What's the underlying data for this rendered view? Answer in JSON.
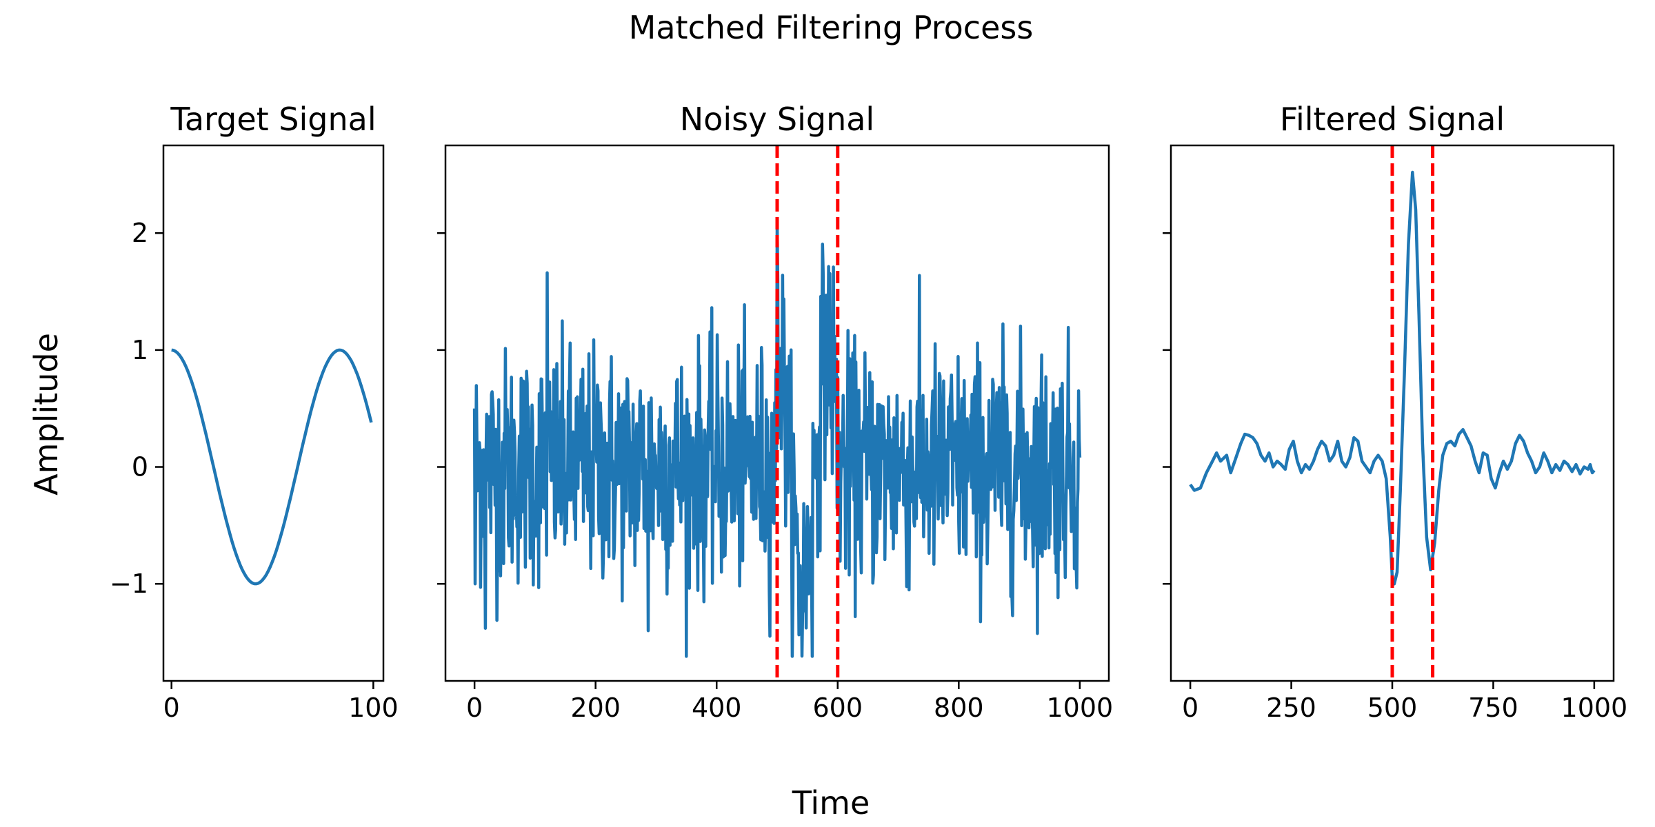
{
  "figure": {
    "suptitle": "Matched Filtering Process",
    "supxlabel": "Time",
    "supylabel": "Amplitude"
  },
  "colors": {
    "line": "#1f77b4",
    "marker_line": "#ff0000",
    "axes": "#000000",
    "background": "#ffffff"
  },
  "chart_data": [
    {
      "type": "line",
      "title": "Target Signal",
      "xlim": [
        -4,
        105
      ],
      "ylim": [
        -1.83,
        2.75
      ],
      "xticks": [
        0,
        100
      ],
      "xtick_labels": [
        "0",
        "100"
      ],
      "yticks": [
        -1,
        0,
        1,
        2
      ],
      "ytick_labels": [
        "−1",
        "0",
        "1",
        "2"
      ],
      "show_ytick_labels": true,
      "grid": false,
      "series": [
        {
          "description": "one period-ish cosine, n=100",
          "x_range": [
            0,
            99
          ],
          "cycles": 1.2,
          "amplitude": 1.0
        }
      ],
      "vlines": []
    },
    {
      "type": "line",
      "title": "Noisy Signal",
      "xlim": [
        -48,
        1048
      ],
      "ylim": [
        -1.83,
        2.75
      ],
      "xticks": [
        0,
        200,
        400,
        600,
        800,
        1000
      ],
      "xtick_labels": [
        "0",
        "200",
        "400",
        "600",
        "800",
        "1000"
      ],
      "yticks": [
        -1,
        0,
        1,
        2
      ],
      "ytick_labels": [
        "−1",
        "0",
        "1",
        "2"
      ],
      "show_ytick_labels": false,
      "grid": false,
      "series": [
        {
          "x_range": [
            0,
            1000
          ],
          "noise_amplitude_approx": 0.5,
          "signal_window": [
            500,
            600
          ],
          "signal_peak": 2.1,
          "signal_min": -1.6
        }
      ],
      "vlines": [
        500,
        600
      ]
    },
    {
      "type": "line",
      "title": "Filtered Signal",
      "xlim": [
        -48,
        1048
      ],
      "ylim": [
        -1.83,
        2.75
      ],
      "xticks": [
        0,
        250,
        500,
        750,
        1000
      ],
      "xtick_labels": [
        "0",
        "250",
        "500",
        "750",
        "1000"
      ],
      "yticks": [
        -1,
        0,
        1,
        2
      ],
      "ytick_labels": [
        "−1",
        "0",
        "1",
        "2"
      ],
      "show_ytick_labels": false,
      "grid": false,
      "series": [
        {
          "x_range": [
            0,
            1000
          ],
          "points": [
            [
              0,
              -0.15
            ],
            [
              10,
              -0.2
            ],
            [
              25,
              -0.18
            ],
            [
              40,
              -0.05
            ],
            [
              55,
              0.05
            ],
            [
              65,
              0.12
            ],
            [
              75,
              0.05
            ],
            [
              90,
              0.1
            ],
            [
              100,
              -0.05
            ],
            [
              110,
              0.05
            ],
            [
              125,
              0.2
            ],
            [
              135,
              0.28
            ],
            [
              145,
              0.27
            ],
            [
              155,
              0.25
            ],
            [
              165,
              0.2
            ],
            [
              175,
              0.1
            ],
            [
              185,
              0.05
            ],
            [
              195,
              0.12
            ],
            [
              205,
              0.0
            ],
            [
              215,
              0.05
            ],
            [
              225,
              0.02
            ],
            [
              235,
              -0.02
            ],
            [
              245,
              0.15
            ],
            [
              255,
              0.22
            ],
            [
              265,
              0.05
            ],
            [
              275,
              -0.05
            ],
            [
              285,
              0.02
            ],
            [
              295,
              -0.02
            ],
            [
              305,
              0.05
            ],
            [
              315,
              0.15
            ],
            [
              325,
              0.22
            ],
            [
              335,
              0.18
            ],
            [
              345,
              0.05
            ],
            [
              355,
              0.1
            ],
            [
              365,
              0.22
            ],
            [
              375,
              0.05
            ],
            [
              385,
              0.0
            ],
            [
              395,
              0.08
            ],
            [
              405,
              0.25
            ],
            [
              415,
              0.22
            ],
            [
              425,
              0.05
            ],
            [
              435,
              0.0
            ],
            [
              445,
              -0.05
            ],
            [
              455,
              0.05
            ],
            [
              465,
              0.1
            ],
            [
              475,
              0.05
            ],
            [
              485,
              -0.1
            ],
            [
              495,
              -0.6
            ],
            [
              500,
              -0.95
            ],
            [
              505,
              -1.0
            ],
            [
              512,
              -0.9
            ],
            [
              520,
              -0.2
            ],
            [
              530,
              0.8
            ],
            [
              540,
              1.9
            ],
            [
              550,
              2.52
            ],
            [
              558,
              2.2
            ],
            [
              566,
              1.3
            ],
            [
              575,
              0.2
            ],
            [
              585,
              -0.6
            ],
            [
              595,
              -0.88
            ],
            [
              605,
              -0.65
            ],
            [
              615,
              -0.2
            ],
            [
              625,
              0.1
            ],
            [
              635,
              0.2
            ],
            [
              645,
              0.22
            ],
            [
              655,
              0.18
            ],
            [
              665,
              0.28
            ],
            [
              675,
              0.32
            ],
            [
              685,
              0.25
            ],
            [
              695,
              0.18
            ],
            [
              705,
              0.05
            ],
            [
              715,
              -0.05
            ],
            [
              725,
              0.12
            ],
            [
              735,
              0.1
            ],
            [
              745,
              -0.1
            ],
            [
              755,
              -0.18
            ],
            [
              765,
              -0.05
            ],
            [
              775,
              0.05
            ],
            [
              785,
              -0.02
            ],
            [
              795,
              0.05
            ],
            [
              805,
              0.2
            ],
            [
              815,
              0.27
            ],
            [
              825,
              0.22
            ],
            [
              835,
              0.12
            ],
            [
              845,
              0.05
            ],
            [
              855,
              -0.05
            ],
            [
              865,
              0.0
            ],
            [
              875,
              0.12
            ],
            [
              885,
              0.05
            ],
            [
              895,
              -0.05
            ],
            [
              905,
              0.02
            ],
            [
              915,
              -0.03
            ],
            [
              925,
              0.05
            ],
            [
              935,
              0.02
            ],
            [
              945,
              -0.04
            ],
            [
              955,
              0.02
            ],
            [
              965,
              -0.06
            ],
            [
              975,
              0.0
            ],
            [
              985,
              -0.02
            ],
            [
              990,
              0.02
            ],
            [
              995,
              -0.05
            ],
            [
              1000,
              -0.03
            ]
          ]
        }
      ],
      "vlines": [
        500,
        600
      ]
    }
  ]
}
